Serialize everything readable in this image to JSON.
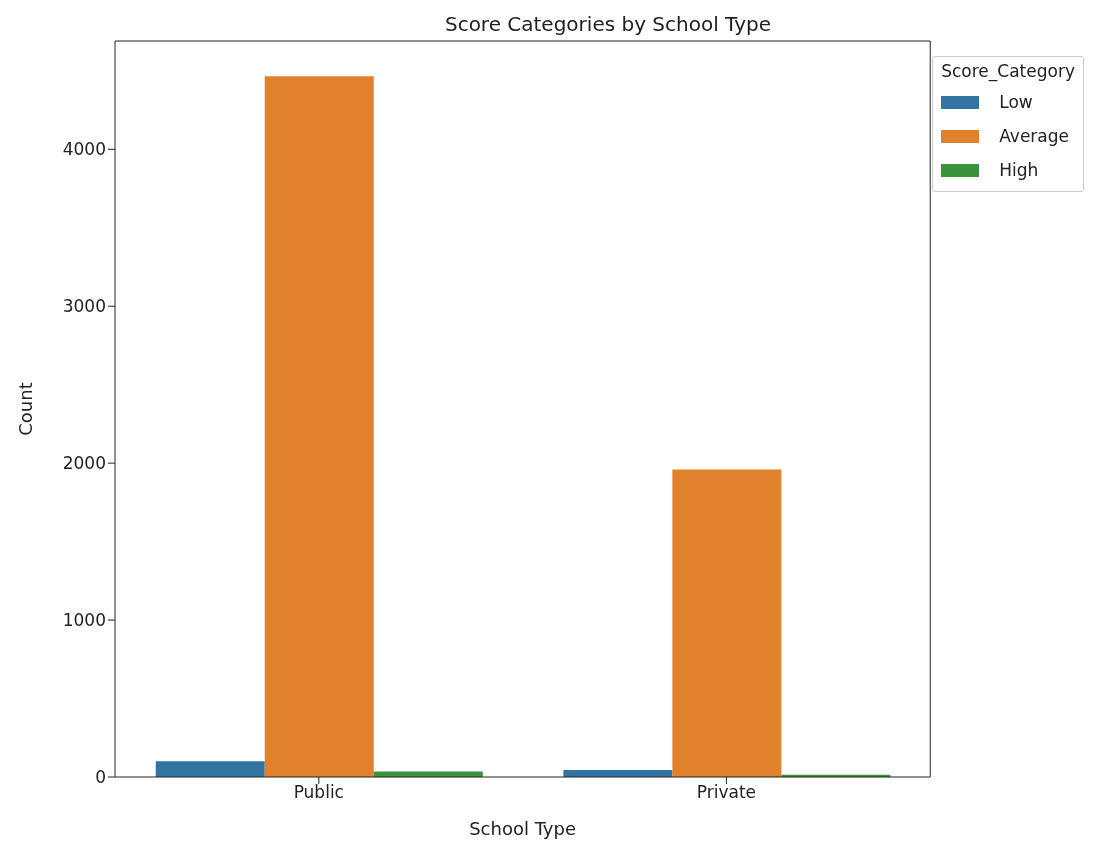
{
  "chart_data": {
    "type": "bar",
    "title": "Score Categories by School Type",
    "xlabel": "School Type",
    "ylabel": "Count",
    "legend_title": "Score_Category",
    "categories": [
      "Public",
      "Private"
    ],
    "series": [
      {
        "name": "Low",
        "color": "#3274a1",
        "values": [
          100,
          45
        ]
      },
      {
        "name": "Average",
        "color": "#e1812c",
        "values": [
          4465,
          1960
        ]
      },
      {
        "name": "High",
        "color": "#3a923a",
        "values": [
          35,
          15
        ]
      }
    ],
    "ylim": [
      0,
      4690
    ],
    "yticks": [
      0,
      1000,
      2000,
      3000,
      4000
    ],
    "grid": false,
    "legend": "top right"
  }
}
